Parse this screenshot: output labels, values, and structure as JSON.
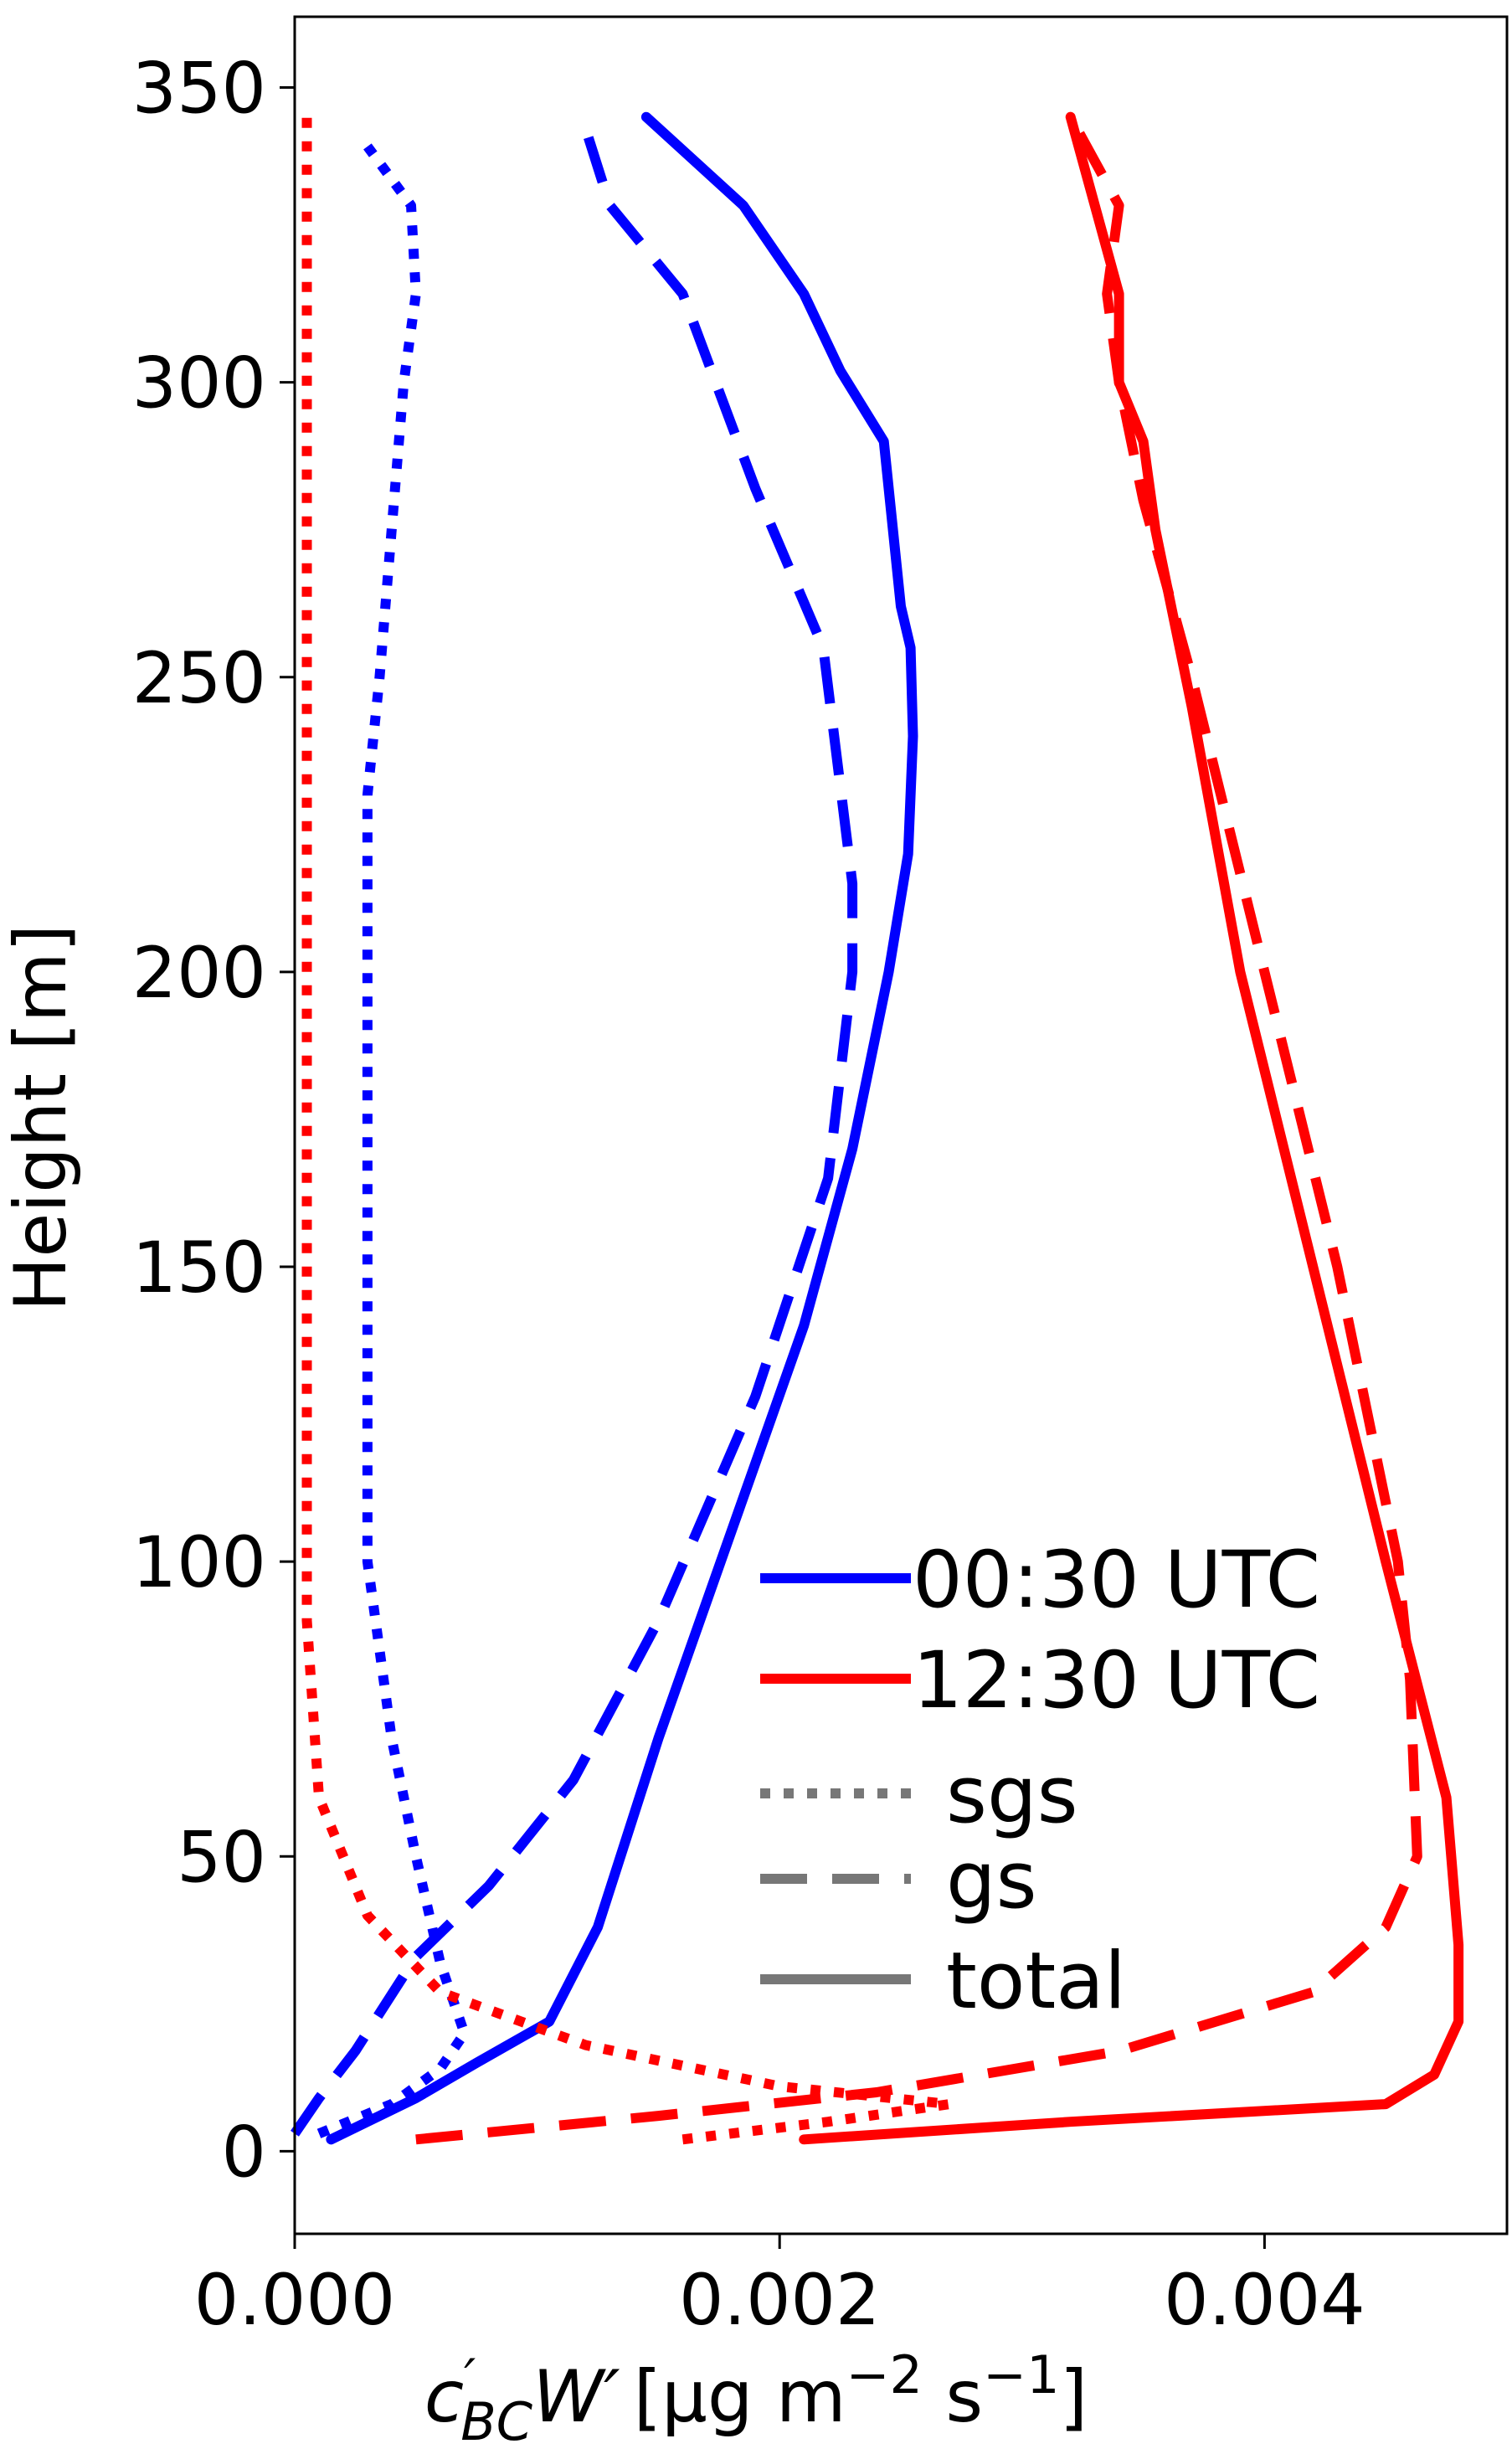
{
  "chart_data": {
    "type": "line",
    "xlabel_main": "c",
    "xlabel_prime": "′",
    "xlabel_sub": "BC",
    "xlabel_w": "W′",
    "xlabel_units": "[μg m",
    "xlabel_exp1": "−2",
    "xlabel_s": " s",
    "xlabel_exp2": "−1",
    "xlabel_close": "]",
    "ylabel": "Height [m]",
    "xlim": [
      0.0,
      0.005
    ],
    "ylim": [
      -14,
      362
    ],
    "xticks": [
      0.0,
      0.002,
      0.004
    ],
    "xtick_labels": [
      "0.000",
      "0.002",
      "0.004"
    ],
    "yticks": [
      0,
      50,
      100,
      150,
      200,
      250,
      300,
      350
    ],
    "ytick_labels": [
      "0",
      "50",
      "100",
      "150",
      "200",
      "250",
      "300",
      "350"
    ],
    "legend": {
      "placement": "lower-right",
      "entries": [
        {
          "label": "00:30 UTC",
          "color": "#0000ff",
          "style": "solid"
        },
        {
          "label": "12:30 UTC",
          "color": "#ff0000",
          "style": "solid"
        },
        {
          "label": "sgs",
          "color": "#777777",
          "style": "dotted"
        },
        {
          "label": "gs",
          "color": "#777777",
          "style": "dashed"
        },
        {
          "label": "total",
          "color": "#777777",
          "style": "solid"
        }
      ]
    },
    "series": [
      {
        "time": "00:30 UTC",
        "kind": "total",
        "color": "#0000ff",
        "style": "solid",
        "x": [
          0.00015,
          0.0005,
          0.00075,
          0.00105,
          0.00125,
          0.0015,
          0.0018,
          0.0021,
          0.0023,
          0.00245,
          0.00253,
          0.00255,
          0.00254,
          0.0025,
          0.00243,
          0.00225,
          0.0021,
          0.00185,
          0.00145
        ],
        "y": [
          2,
          9,
          15,
          22,
          38,
          70,
          105,
          140,
          170,
          200,
          220,
          240,
          255,
          262,
          290,
          302,
          315,
          330,
          345
        ]
      },
      {
        "time": "00:30 UTC",
        "kind": "gs",
        "color": "#0000ff",
        "style": "dashed",
        "x": [
          0.0,
          0.0001,
          0.00025,
          0.0005,
          0.0008,
          0.00115,
          0.0015,
          0.0019,
          0.0022,
          0.0023,
          0.0023,
          0.00218,
          0.0019,
          0.0016,
          0.0013,
          0.0012
        ],
        "y": [
          3,
          9,
          17,
          33,
          45,
          63,
          90,
          128,
          165,
          200,
          215,
          255,
          282,
          315,
          330,
          343
        ]
      },
      {
        "time": "00:30 UTC",
        "kind": "sgs",
        "color": "#0000ff",
        "style": "dotted",
        "x": [
          0.0001,
          0.0004,
          0.0006,
          0.0007,
          0.0006,
          0.0005,
          0.0004,
          0.0003,
          0.0003,
          0.0003,
          0.0003,
          0.00035,
          0.0004,
          0.00045,
          0.0005,
          0.00048,
          0.0003
        ],
        "y": [
          3,
          8,
          14,
          20,
          32,
          50,
          70,
          100,
          150,
          200,
          230,
          250,
          275,
          300,
          315,
          330,
          340
        ]
      },
      {
        "time": "12:30 UTC",
        "kind": "total",
        "color": "#ff0000",
        "style": "solid",
        "x": [
          0.0021,
          0.0032,
          0.0045,
          0.0047,
          0.0048,
          0.0048,
          0.00475,
          0.0045,
          0.0042,
          0.0039,
          0.0037,
          0.00355,
          0.0035,
          0.0034,
          0.0034,
          0.0033,
          0.0032
        ],
        "y": [
          2,
          5,
          8,
          13,
          22,
          35,
          60,
          100,
          150,
          200,
          245,
          275,
          290,
          300,
          315,
          330,
          345
        ]
      },
      {
        "time": "12:30 UTC",
        "kind": "gs",
        "color": "#ff0000",
        "style": "dashed",
        "x": [
          0.0005,
          0.0015,
          0.0024,
          0.0034,
          0.0042,
          0.0045,
          0.00463,
          0.0046,
          0.00455,
          0.0043,
          0.004,
          0.0037,
          0.0035,
          0.0034,
          0.00335,
          0.0034,
          0.0032
        ],
        "y": [
          2,
          6,
          10,
          17,
          27,
          38,
          50,
          80,
          100,
          150,
          200,
          250,
          280,
          300,
          315,
          330,
          345
        ]
      },
      {
        "time": "12:30 UTC",
        "kind": "sgs",
        "color": "#ff0000",
        "style": "dotted",
        "x": [
          0.0016,
          0.0022,
          0.0027,
          0.002,
          0.0012,
          0.0006,
          0.0003,
          0.0001,
          5e-05,
          5e-05,
          5e-05,
          5e-05,
          5e-05,
          5e-05,
          5e-05
        ],
        "y": [
          2,
          5,
          8,
          11,
          18,
          27,
          40,
          60,
          90,
          120,
          150,
          200,
          250,
          300,
          345
        ]
      }
    ]
  }
}
